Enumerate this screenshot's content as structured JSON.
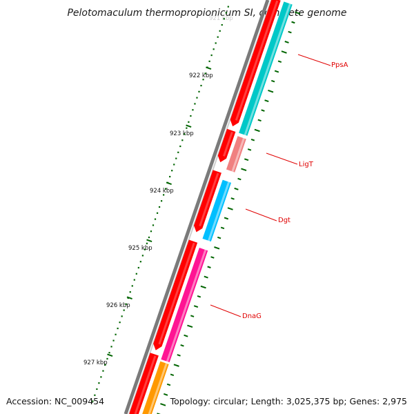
{
  "title": "Pelotomaculum thermopropionicum SI, complete genome",
  "faint_top_label": "921 kbp",
  "scale_labels": [
    "922 kbp",
    "923 kbp",
    "924 kbp",
    "925 kbp",
    "926 kbp",
    "927 kbp"
  ],
  "genes": [
    {
      "name": "PpsA",
      "strand": "forward",
      "color": "#00c8c8"
    },
    {
      "name": "LigT",
      "strand": "forward",
      "color": "#f08080"
    },
    {
      "name": "Dgt",
      "strand": "forward",
      "color": "#00bfff"
    },
    {
      "name": "DnaG",
      "strand": "forward",
      "color": "#ff1493"
    },
    {
      "name": "",
      "strand": "forward",
      "color": "#ff9900"
    }
  ],
  "reverse_track_color": "#ff0000",
  "backbone_color": "#808080",
  "tick_color": "#006400",
  "label_color": "#e00000",
  "footer": {
    "accession": "Accession: NC_009454",
    "summary": "Topology: circular; Length: 3,025,375 bp; Genes: 2,975"
  }
}
